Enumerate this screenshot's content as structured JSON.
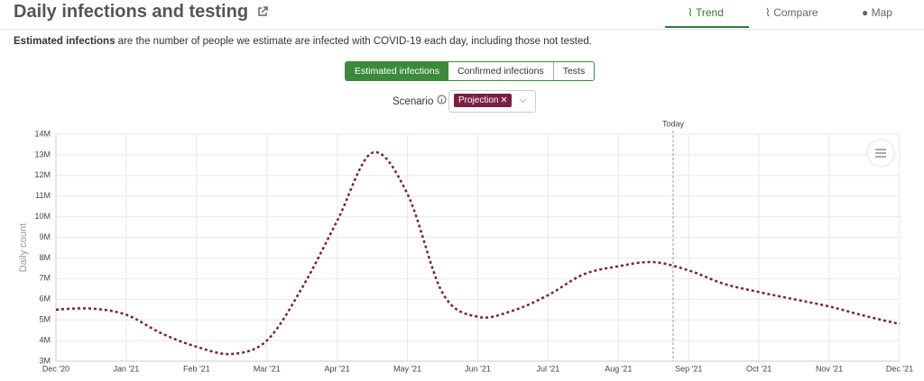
{
  "header": {
    "title": "Daily infections and testing",
    "tabs": [
      "Trend",
      "Compare",
      "Map"
    ]
  },
  "description": {
    "bold": "Estimated infections",
    "rest": "are the number of people we estimate are infected with COVID-19 each day, including those not tested."
  },
  "toggle": [
    "Estimated infections",
    "Confirmed infections",
    "Tests"
  ],
  "scenario": {
    "label": "Scenario",
    "chip": "Projection"
  },
  "chart_data": {
    "type": "line",
    "ylabel": "Daily count",
    "annotation": "Today",
    "categories": [
      "Dec '20",
      null,
      "Jan '21",
      null,
      "Feb '21",
      null,
      "Mar '21",
      null,
      "Apr '21",
      null,
      "May '21",
      null,
      "Jun '21",
      null,
      "Jul '21",
      null,
      "Aug '21",
      null,
      "Sep '21",
      null,
      "Oct '21",
      null,
      "Nov '21",
      null,
      "Dec '21"
    ],
    "series": [
      {
        "name": "Projection",
        "color": "#7a1f43",
        "values": [
          5500000,
          5550000,
          5250000,
          4350000,
          3700000,
          3350000,
          4000000,
          6550000,
          9800000,
          13100000,
          11100000,
          6300000,
          5150000,
          5450000,
          6200000,
          7200000,
          7600000,
          7800000,
          7400000,
          6750000,
          6350000,
          6000000,
          5650000,
          5200000,
          4800000
        ]
      }
    ],
    "ylim": [
      3000000,
      14000000
    ],
    "yticks": [
      {
        "value": 3000000,
        "label": "3M"
      },
      {
        "value": 4000000,
        "label": "4M"
      },
      {
        "value": 5000000,
        "label": "5M"
      },
      {
        "value": 6000000,
        "label": "6M"
      },
      {
        "value": 7000000,
        "label": "7M"
      },
      {
        "value": 8000000,
        "label": "8M"
      },
      {
        "value": 9000000,
        "label": "9M"
      },
      {
        "value": 10000000,
        "label": "10M"
      },
      {
        "value": 11000000,
        "label": "11M"
      },
      {
        "value": 12000000,
        "label": "12M"
      },
      {
        "value": 13000000,
        "label": "13M"
      },
      {
        "value": 14000000,
        "label": "14M"
      }
    ],
    "grid": true
  }
}
